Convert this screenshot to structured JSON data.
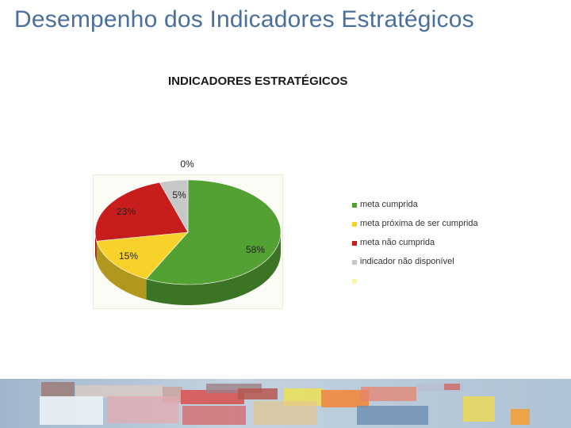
{
  "slide": {
    "title": "Desempenho dos Indicadores Estratégicos"
  },
  "chart_data": {
    "type": "pie",
    "title": "INDICADORES ESTRATÉGICOS",
    "slices": [
      {
        "name": "meta cumprida",
        "value": 58,
        "label": "58%",
        "color": "#52a132"
      },
      {
        "name": "meta próxima de ser cumprida",
        "value": 15,
        "label": "15%",
        "color": "#f7d22b"
      },
      {
        "name": "meta não cumprida",
        "value": 23,
        "label": "23%",
        "color": "#c81d1d"
      },
      {
        "name": "indicador não disponível",
        "value": 5,
        "label": "5%",
        "color": "#c8c8c8"
      },
      {
        "name": "",
        "value": 0,
        "label": "0%",
        "color": "#fdf5a6"
      }
    ],
    "legend_position": "right",
    "three_d": true
  },
  "legend": {
    "items": [
      {
        "label": "meta cumprida",
        "color": "#52a132"
      },
      {
        "label": "meta próxima de ser cumprida",
        "color": "#f7d22b"
      },
      {
        "label": "meta não cumprida",
        "color": "#c81d1d"
      },
      {
        "label": "indicador não disponível",
        "color": "#c8c8c8"
      },
      {
        "label": "",
        "color": "#fdf5a6"
      }
    ]
  }
}
